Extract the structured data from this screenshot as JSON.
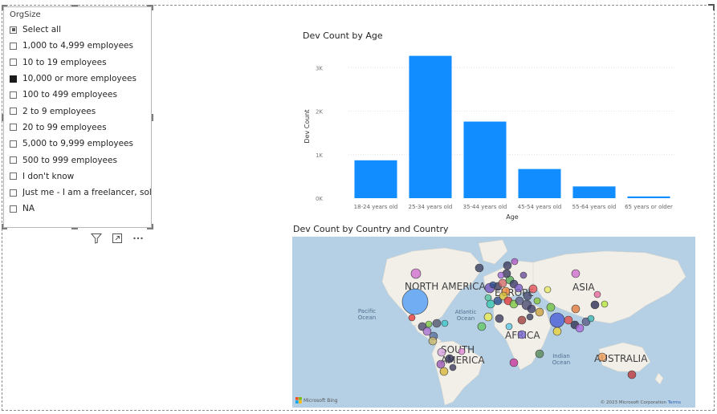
{
  "slicer": {
    "title": "OrgSize",
    "items": [
      {
        "label": "Select all",
        "state": "partial"
      },
      {
        "label": "1,000 to 4,999 employees",
        "state": "unchecked"
      },
      {
        "label": "10 to 19 employees",
        "state": "unchecked"
      },
      {
        "label": "10,000 or more employees",
        "state": "checked"
      },
      {
        "label": "100 to 499 employees",
        "state": "unchecked"
      },
      {
        "label": "2 to 9 employees",
        "state": "unchecked"
      },
      {
        "label": "20 to 99 employees",
        "state": "unchecked"
      },
      {
        "label": "5,000 to 9,999 employees",
        "state": "unchecked"
      },
      {
        "label": "500 to 999 employees",
        "state": "unchecked"
      },
      {
        "label": "I don't know",
        "state": "unchecked"
      },
      {
        "label": "Just me - I am a freelancer, sol...",
        "state": "unchecked"
      },
      {
        "label": "NA",
        "state": "unchecked"
      }
    ],
    "toolbar_icons": [
      "filter-icon",
      "focus-mode-icon",
      "more-options-icon"
    ]
  },
  "chart_data": {
    "type": "bar",
    "title": "Dev Count by Age",
    "xlabel": "Age",
    "ylabel": "Dev Count",
    "categories": [
      "18-24 years old",
      "25-34 years old",
      "35-44 years old",
      "45-54 years old",
      "55-64 years old",
      "65 years or older"
    ],
    "values": [
      870,
      3270,
      1760,
      670,
      270,
      40
    ],
    "ylim": [
      0,
      3300
    ],
    "yticks": [
      {
        "value": 0,
        "label": "0K"
      },
      {
        "value": 1000,
        "label": "1K"
      },
      {
        "value": 2000,
        "label": "2K"
      },
      {
        "value": 3000,
        "label": "3K"
      }
    ],
    "grid": true,
    "bar_color": "#118dff"
  },
  "map": {
    "title": "Dev Count by Country and Country",
    "continent_labels": [
      "NORTH AMERICA",
      "EUROPE",
      "ASIA",
      "AFRICA",
      "SOUTH AMERICA",
      "AUSTRALIA"
    ],
    "ocean_labels": [
      "Pacific Ocean",
      "Atlantic Ocean",
      "Indian Ocean"
    ],
    "attribution": "Microsoft Bing",
    "copyright": "© 2023 Microsoft Corporation",
    "terms_link": "Terms",
    "colors": {
      "water": "#b5d0e5",
      "land": "#f2efe9"
    }
  }
}
